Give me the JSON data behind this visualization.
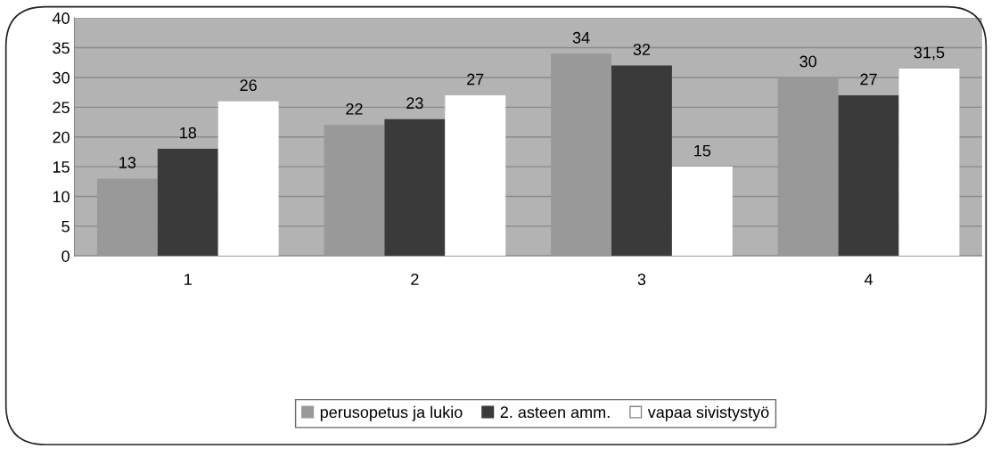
{
  "chart_data": {
    "type": "bar",
    "categories": [
      "1",
      "2",
      "3",
      "4"
    ],
    "series": [
      {
        "name": "perusopetus ja lukio",
        "color": "#999999",
        "values": [
          13,
          22,
          34,
          30
        ],
        "value_labels": [
          "13",
          "22",
          "34",
          "30"
        ]
      },
      {
        "name": "2. asteen amm.",
        "color": "#3a3a3a",
        "values": [
          18,
          23,
          32,
          27
        ],
        "value_labels": [
          "18",
          "23",
          "32",
          "27"
        ]
      },
      {
        "name": "vapaa sivistystyö",
        "color": "#ffffff",
        "values": [
          26,
          27,
          15,
          31.5
        ],
        "value_labels": [
          "26",
          "27",
          "15",
          "31,5"
        ]
      }
    ],
    "ylim": [
      0,
      40
    ],
    "yticks": [
      0,
      5,
      10,
      15,
      20,
      25,
      30,
      35,
      40
    ],
    "grid": "y",
    "legend": "bottom"
  }
}
